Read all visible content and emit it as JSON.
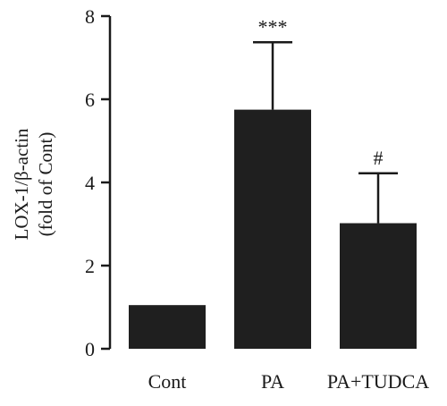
{
  "chart_data": {
    "type": "bar",
    "categories": [
      "Cont",
      "PA",
      "PA+TUDCA"
    ],
    "values": [
      1.05,
      5.75,
      3.02
    ],
    "errors": [
      0,
      1.62,
      1.2
    ],
    "annotations": [
      "",
      "***",
      "#"
    ],
    "ylabel_line1": "LOX-1/β-actin",
    "ylabel_line2": "(fold of Cont)",
    "ylim": [
      0,
      8
    ],
    "yticks": [
      0,
      2,
      4,
      6,
      8
    ],
    "bar_color": "#1f1f1f",
    "grid": false,
    "legend": "none"
  }
}
